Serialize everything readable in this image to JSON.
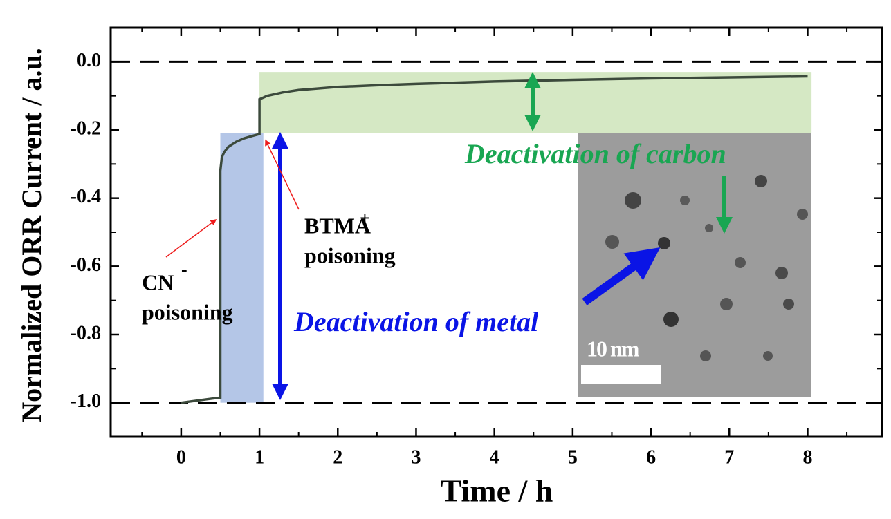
{
  "chart_data": {
    "type": "line",
    "xlabel": "Time / h",
    "ylabel": "Normalized ORR Current / a.u.",
    "xlim": [
      -0.9,
      8.95
    ],
    "xticks": [
      0,
      1,
      2,
      3,
      4,
      5,
      6,
      7,
      8
    ],
    "ylim": [
      -1.1,
      0.1
    ],
    "yticks": [
      {
        "value": 0,
        "label": "0.0"
      },
      -0.2,
      -0.4,
      -0.6,
      -0.8,
      {
        "value": -1,
        "label": "-1.0"
      }
    ],
    "series": [
      {
        "name": "ORR current",
        "color": "#3c4a3c",
        "x": [
          0,
          0.1,
          0.2,
          0.3,
          0.4,
          0.5,
          0.5,
          0.52,
          0.55,
          0.6,
          0.7,
          0.8,
          0.9,
          1.0,
          1.0,
          1.1,
          1.3,
          1.5,
          2,
          2.5,
          3,
          4,
          5,
          6,
          7,
          8
        ],
        "values": [
          -1.0,
          -0.997,
          -0.994,
          -0.991,
          -0.988,
          -0.985,
          -0.32,
          -0.28,
          -0.265,
          -0.25,
          -0.235,
          -0.225,
          -0.218,
          -0.212,
          -0.11,
          -0.1,
          -0.09,
          -0.083,
          -0.074,
          -0.069,
          -0.065,
          -0.058,
          -0.053,
          -0.049,
          -0.046,
          -0.043
        ]
      }
    ],
    "reference_lines": [
      0,
      -1
    ],
    "shaded_regions": [
      {
        "x": [
          0.5,
          1.05
        ],
        "y": [
          -1,
          -0.21
        ],
        "color": "#b4c6e7"
      },
      {
        "x": [
          1.0,
          8.05
        ],
        "y": [
          -0.21,
          -0.03
        ],
        "color": "#d5e8c4"
      }
    ],
    "annotations": [
      "CN",
      "-",
      "poisoning",
      "BTMA",
      "+",
      "poisoning",
      "Deactivation of metal",
      "Deactivation of carbon",
      "10 nm"
    ]
  }
}
